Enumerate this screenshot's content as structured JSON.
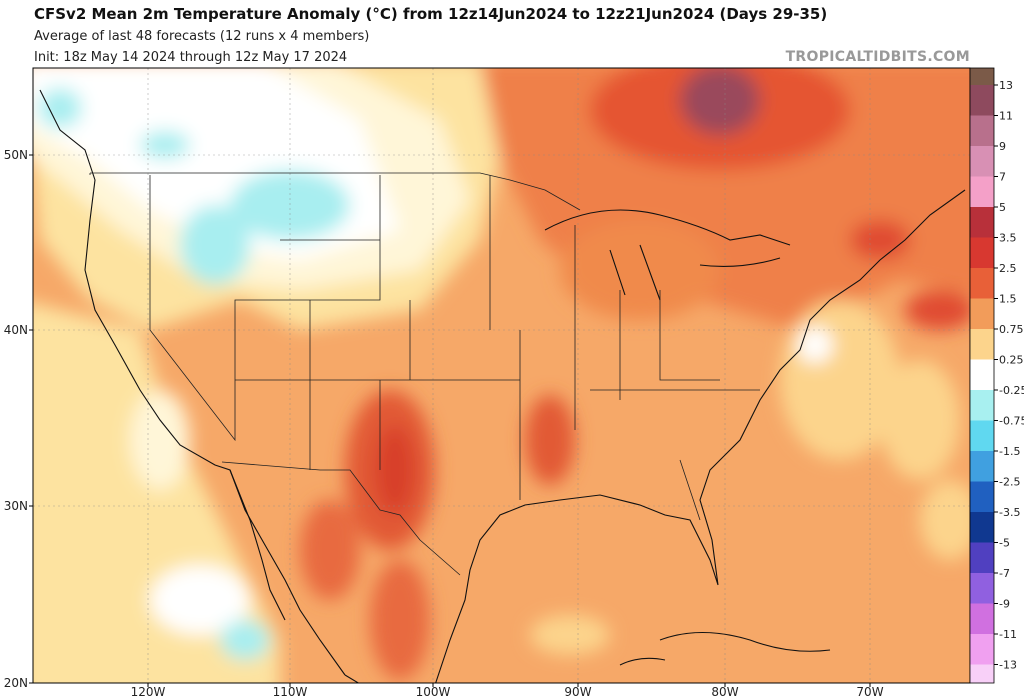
{
  "header": {
    "title": "CFSv2 Mean 2m Temperature Anomaly (°C) from 12z14Jun2024 to 12z21Jun2024 (Days 29-35)",
    "subtitle": "Average of last 48 forecasts (12 runs x 4 members)",
    "init": "Init: 18z May 14 2024 through 12z May 17 2024"
  },
  "watermark": "TROPICALTIDBITS.COM",
  "map": {
    "lat_labels": [
      "50N",
      "40N",
      "30N",
      "20N"
    ],
    "lon_labels": [
      "120W",
      "110W",
      "100W",
      "90W",
      "80W",
      "70W"
    ]
  },
  "colorbar": {
    "labels": [
      "13",
      "11",
      "9",
      "7",
      "5",
      "3.5",
      "2.5",
      "1.5",
      "0.75",
      "0.25",
      "-0.25",
      "-0.75",
      "-1.5",
      "-2.5",
      "-3.5",
      "-5",
      "-7",
      "-9",
      "-11",
      "-13"
    ],
    "colors": [
      "#7b5a48",
      "#8e4a5e",
      "#b8708c",
      "#d890b4",
      "#f4a0c8",
      "#b8303a",
      "#d83830",
      "#e86038",
      "#f29c5a",
      "#fcd48c",
      "#ffffff",
      "#a8f0f0",
      "#60d8f0",
      "#40a0e0",
      "#2060c0",
      "#103890",
      "#5040c0",
      "#9060e0",
      "#d070e0",
      "#f0a0f0",
      "#f8d0f8"
    ]
  }
}
